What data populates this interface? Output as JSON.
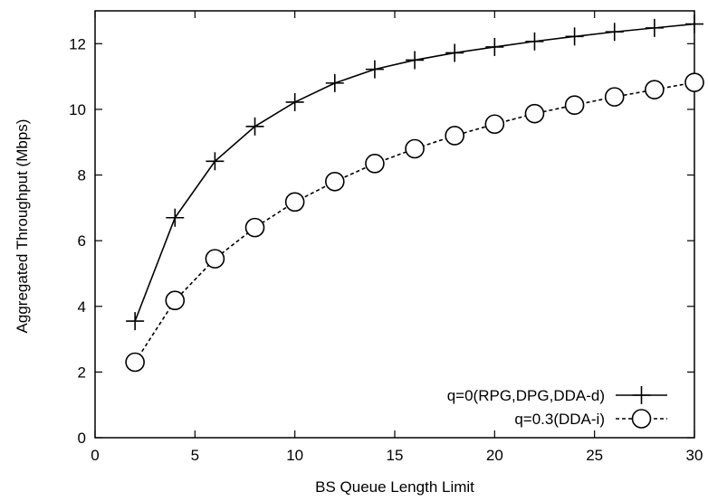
{
  "chart_data": {
    "type": "line",
    "xlabel": "BS Queue Length Limit",
    "ylabel": "Aggregated Throughput (Mbps)",
    "xlim": [
      0,
      30
    ],
    "ylim": [
      0,
      13
    ],
    "x_ticks": [
      0,
      5,
      10,
      15,
      20,
      25,
      30
    ],
    "y_ticks": [
      0,
      2,
      4,
      6,
      8,
      10,
      12
    ],
    "grid": false,
    "legend_position": "bottom-right",
    "series": [
      {
        "name": "q=0(RPG,DPG,DDA-d)",
        "marker": "plus",
        "line_style": "solid",
        "color": "#000000",
        "x": [
          2,
          4,
          6,
          8,
          10,
          12,
          14,
          16,
          18,
          20,
          22,
          24,
          26,
          28,
          30
        ],
        "y": [
          3.55,
          6.7,
          8.42,
          9.48,
          10.22,
          10.8,
          11.22,
          11.5,
          11.72,
          11.9,
          12.07,
          12.22,
          12.36,
          12.48,
          12.6
        ]
      },
      {
        "name": "q=0.3(DDA-i)",
        "marker": "circle",
        "line_style": "dashed",
        "color": "#000000",
        "x": [
          2,
          4,
          6,
          8,
          10,
          12,
          14,
          16,
          18,
          20,
          22,
          24,
          26,
          28,
          30
        ],
        "y": [
          2.3,
          4.18,
          5.45,
          6.4,
          7.18,
          7.8,
          8.35,
          8.8,
          9.2,
          9.55,
          9.87,
          10.13,
          10.38,
          10.6,
          10.82
        ]
      }
    ]
  }
}
